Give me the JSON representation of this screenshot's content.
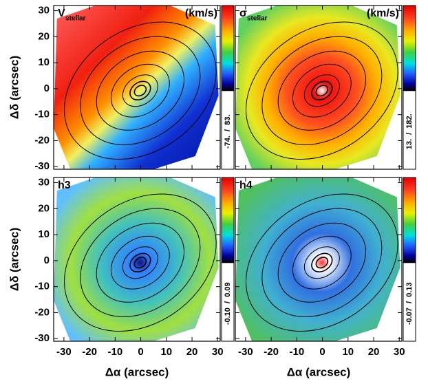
{
  "chart_data": [
    {
      "type": "map",
      "title": "V",
      "title_sub": "stellar",
      "unit": "(km/s)",
      "colorbar_label": "-74.  /  83.",
      "xlim": [
        -34,
        31
      ],
      "ylim": [
        -31,
        32
      ],
      "xticks": [
        -30,
        -20,
        -10,
        0,
        10,
        20,
        30
      ],
      "yticks": [
        -30,
        -20,
        -10,
        0,
        10,
        20,
        30
      ],
      "y_label": "Δδ (arcsec)"
    },
    {
      "type": "map",
      "title": "σ",
      "title_sub": "stellar",
      "unit": "(km/s)",
      "colorbar_label": "13.  /  182.",
      "xlim": [
        -34,
        31
      ],
      "ylim": [
        -31,
        32
      ],
      "xticks": [
        -30,
        -20,
        -10,
        0,
        10,
        20,
        30
      ],
      "yticks": [
        -30,
        -20,
        -10,
        0,
        10,
        20,
        30
      ]
    },
    {
      "type": "map",
      "title": "h3",
      "colorbar_label": "-0.10  /  0.09",
      "xlim": [
        -34,
        31
      ],
      "ylim": [
        -31,
        32
      ],
      "xticks": [
        -30,
        -20,
        -10,
        0,
        10,
        20,
        30
      ],
      "yticks": [
        -30,
        -20,
        -10,
        0,
        10,
        20,
        30
      ],
      "x_label": "Δα (arcsec)",
      "y_label": "Δδ (arcsec)"
    },
    {
      "type": "map",
      "title": "h4",
      "colorbar_label": "-0.07  /  0.13",
      "xlim": [
        -34,
        31
      ],
      "ylim": [
        -31,
        32
      ],
      "xticks": [
        -30,
        -20,
        -10,
        0,
        10,
        20,
        30
      ],
      "yticks": [
        -30,
        -20,
        -10,
        0,
        10,
        20,
        30
      ],
      "x_label": "Δα (arcsec)"
    }
  ]
}
